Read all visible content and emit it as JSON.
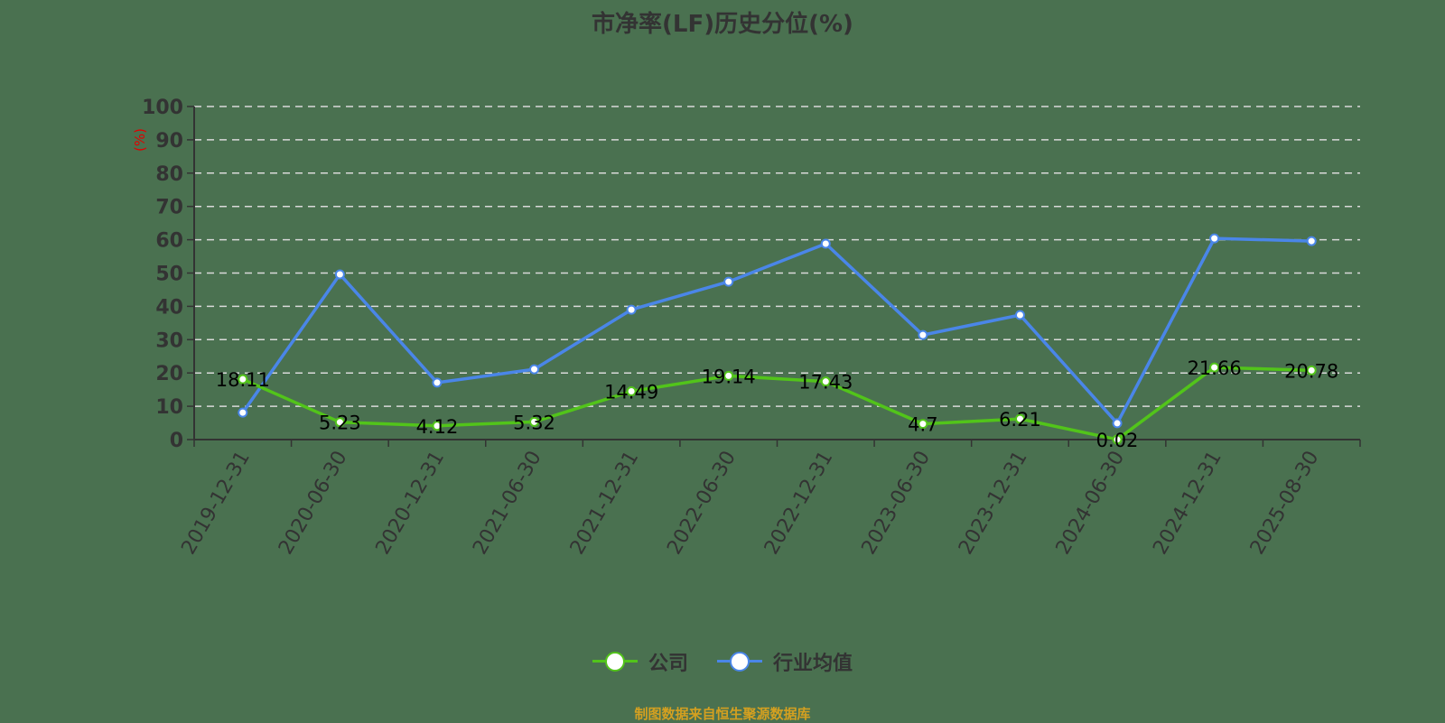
{
  "title": "市净率(LF)历史分位(%)",
  "y_axis_unit": "(%)",
  "legend": {
    "company_label": "公司",
    "industry_label": "行业均值"
  },
  "source": "制图数据来自恒生聚源数据库",
  "colors": {
    "company": "#52c41a",
    "industry": "#4a86e8",
    "background": "#4a7150",
    "grid": "#d9d9d9",
    "axis": "#333333",
    "source_text": "#d4a020"
  },
  "chart_data": {
    "type": "line",
    "title": "市净率(LF)历史分位(%)",
    "xlabel": "",
    "ylabel": "(%)",
    "ylim": [
      0,
      100
    ],
    "yticks": [
      0,
      10,
      20,
      30,
      40,
      50,
      60,
      70,
      80,
      90,
      100
    ],
    "grid": true,
    "legend_position": "bottom",
    "categories": [
      "2019-12-31",
      "2020-06-30",
      "2020-12-31",
      "2021-06-30",
      "2021-12-31",
      "2022-06-30",
      "2022-12-31",
      "2023-06-30",
      "2023-12-31",
      "2024-06-30",
      "2024-12-31",
      "2025-08-30"
    ],
    "series": [
      {
        "name": "公司",
        "color": "#52c41a",
        "show_labels": true,
        "values": [
          18.11,
          5.23,
          4.12,
          5.32,
          14.49,
          19.14,
          17.43,
          4.7,
          6.21,
          0.02,
          21.66,
          20.78
        ]
      },
      {
        "name": "行业均值",
        "color": "#4a86e8",
        "show_labels": false,
        "values": [
          8.1,
          49.6,
          17.1,
          21.1,
          39.0,
          47.4,
          58.8,
          31.4,
          37.4,
          4.9,
          60.4,
          59.6
        ]
      }
    ]
  }
}
